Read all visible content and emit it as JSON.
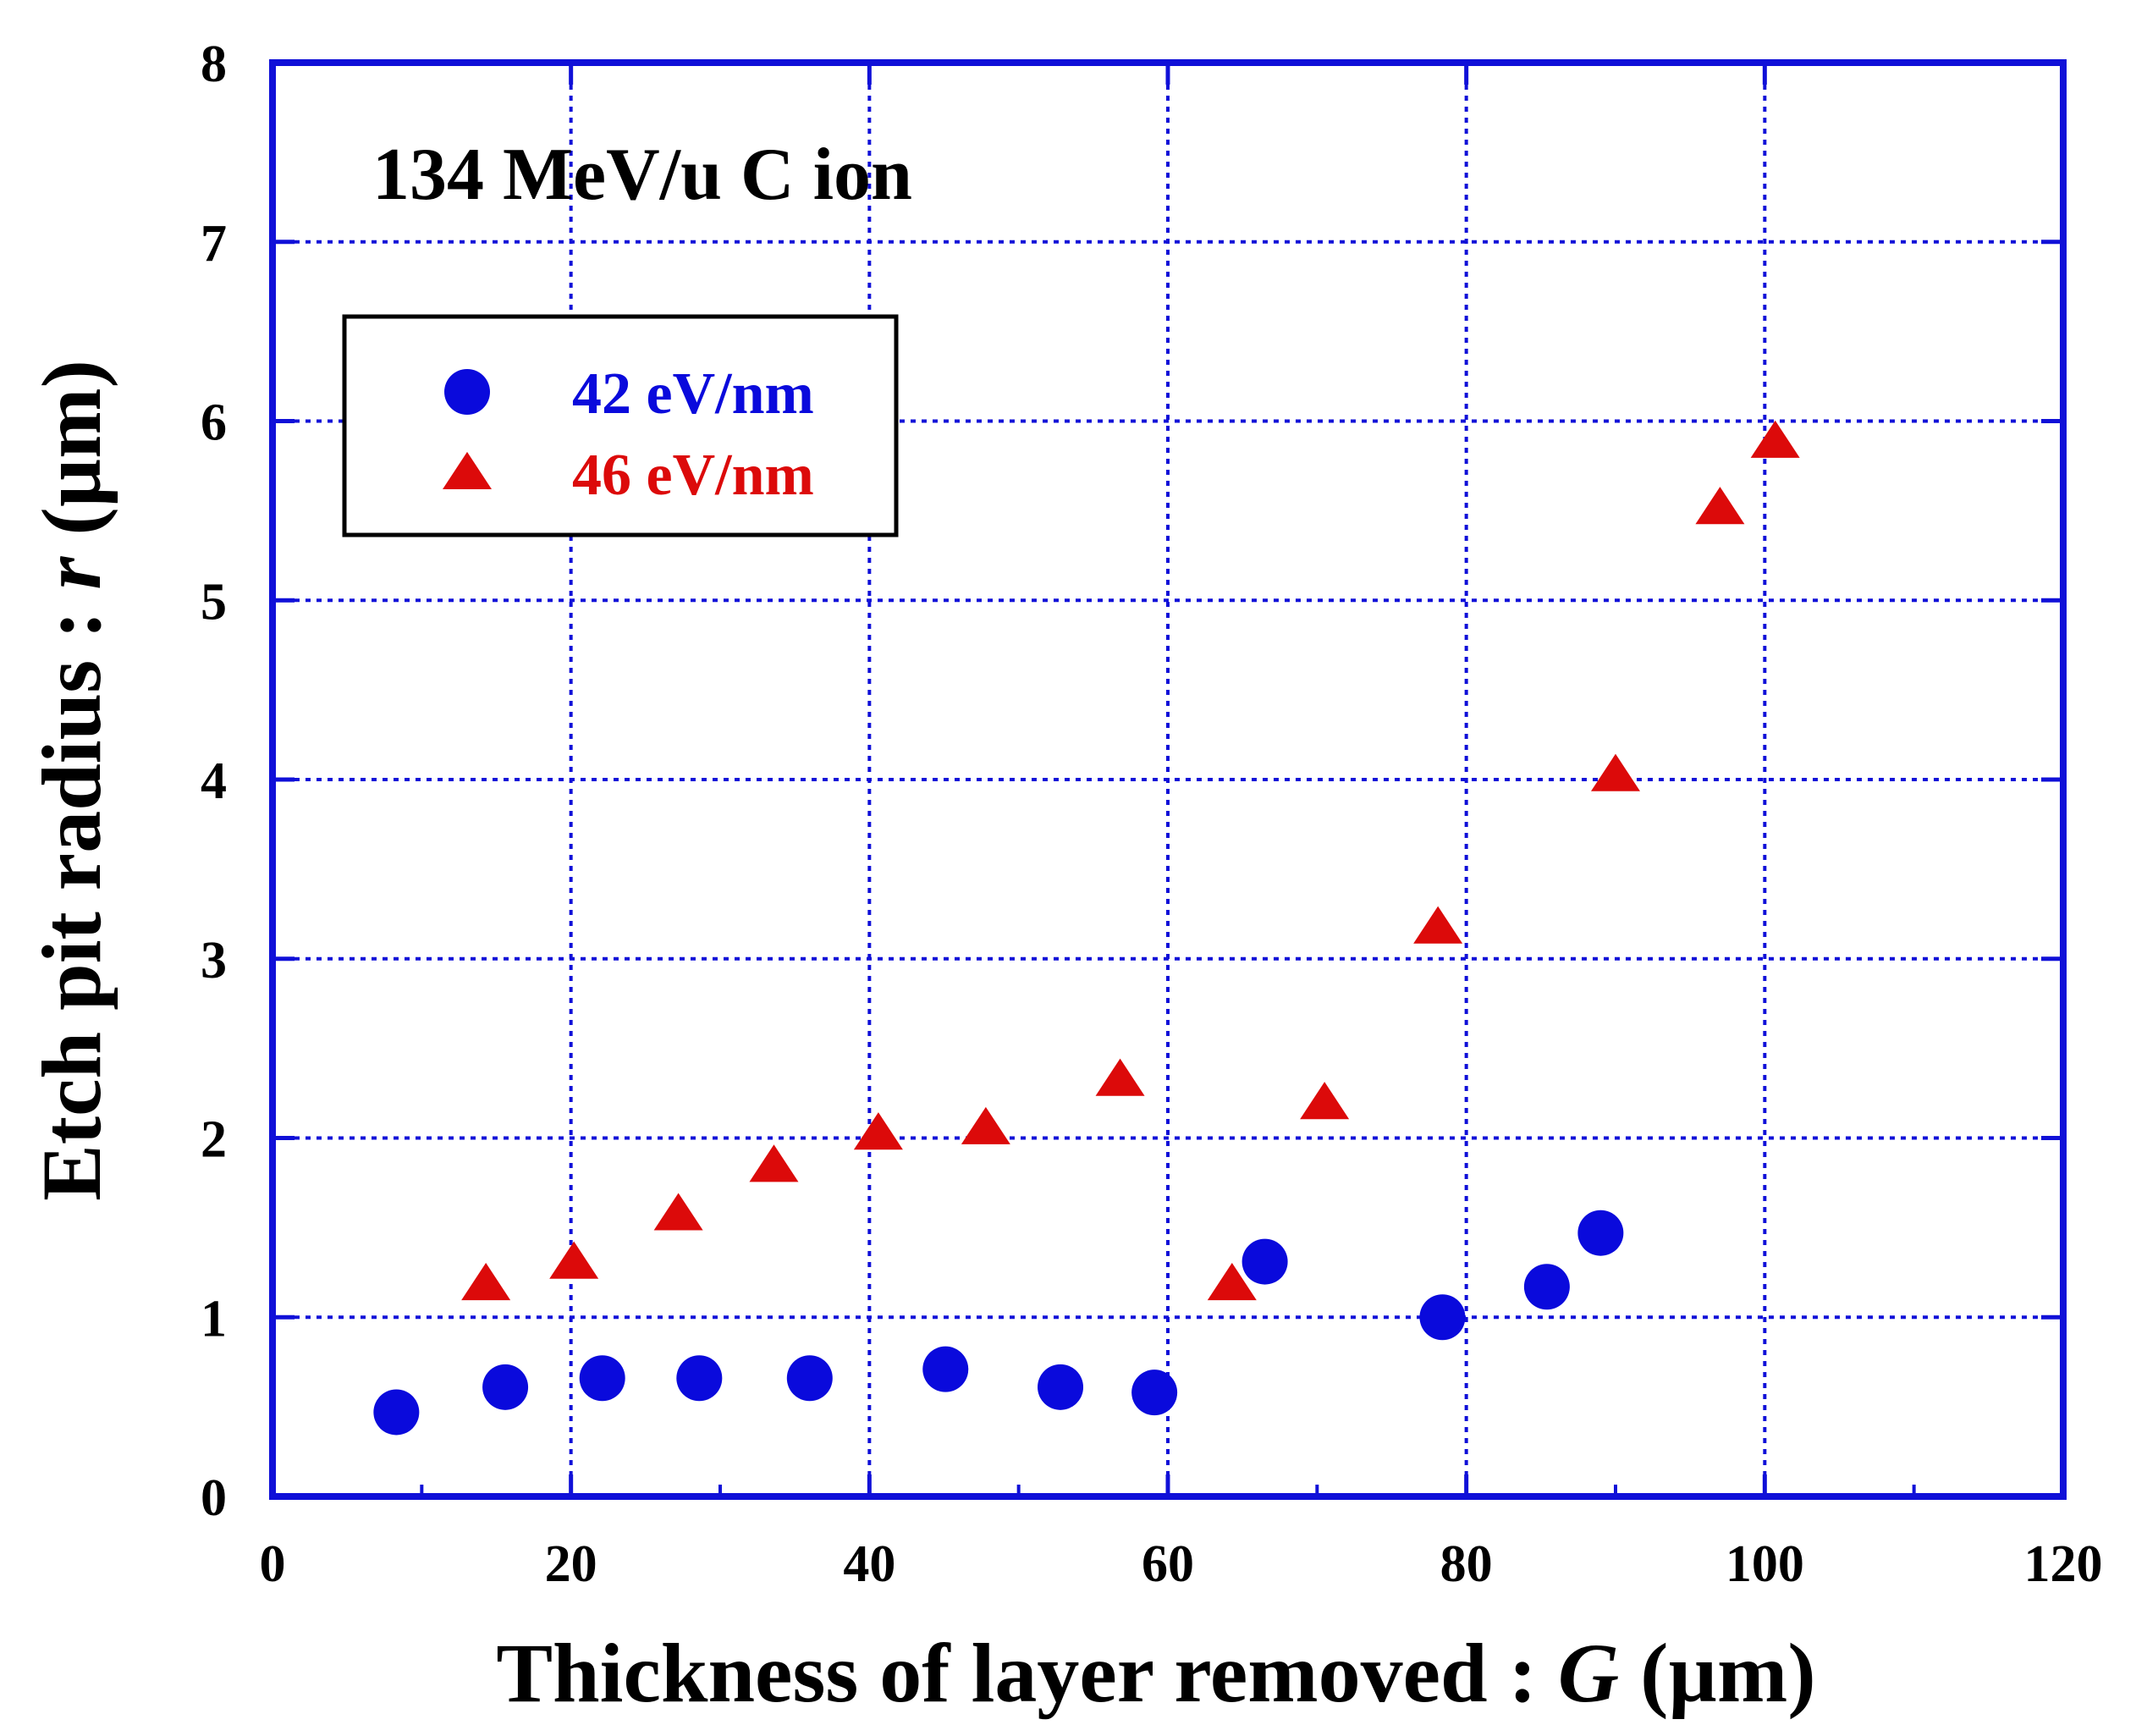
{
  "chart_data": {
    "type": "scatter",
    "annotation": "134 MeV/u C ion",
    "xlabel_prefix": "Thickness of layer removed : ",
    "xlabel_var": "G",
    "xlabel_unit": " (µm)",
    "ylabel_prefix": "Etch pit radius : ",
    "ylabel_var": "r",
    "ylabel_unit": " (µm)",
    "xlim": [
      0,
      120
    ],
    "ylim": [
      0,
      8
    ],
    "xticks": [
      0,
      20,
      40,
      60,
      80,
      100,
      120
    ],
    "yticks": [
      0,
      1,
      2,
      3,
      4,
      5,
      6,
      7,
      8
    ],
    "grid": true,
    "legend_position": "top-left",
    "colors": {
      "axis": "#1010d8",
      "grid": "#1010d8"
    },
    "series": [
      {
        "name": "42 eV/nm",
        "marker": "circle",
        "color": "#0a0adc",
        "x": [
          8.3,
          15.6,
          22.1,
          28.6,
          36.0,
          45.1,
          52.8,
          59.1,
          66.5,
          78.4,
          85.4,
          89.0
        ],
        "y": [
          0.47,
          0.61,
          0.66,
          0.66,
          0.66,
          0.71,
          0.61,
          0.58,
          1.31,
          1.0,
          1.17,
          1.47
        ]
      },
      {
        "name": "46 eV/nm",
        "marker": "triangle",
        "color": "#dc0a0a",
        "x": [
          14.3,
          20.2,
          27.2,
          33.6,
          40.6,
          47.8,
          56.8,
          64.3,
          70.5,
          78.1,
          90.0,
          97.0,
          100.7
        ],
        "y": [
          1.18,
          1.3,
          1.57,
          1.84,
          2.02,
          2.05,
          2.32,
          1.18,
          2.19,
          3.17,
          4.02,
          5.51,
          5.88
        ]
      }
    ]
  }
}
